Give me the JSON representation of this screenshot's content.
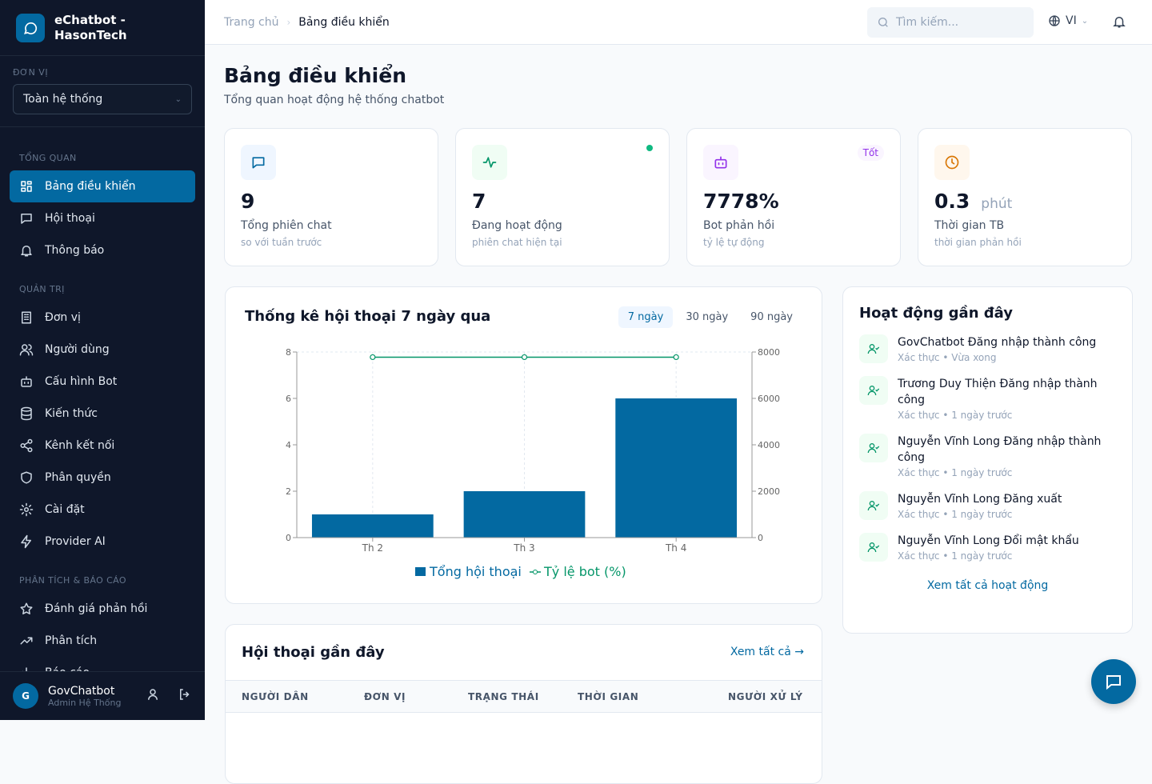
{
  "app": {
    "name_line1": "eChatbot -",
    "name_line2": "HasonTech"
  },
  "unit": {
    "label": "ĐƠN VỊ",
    "value": "Toàn hệ thống"
  },
  "sidebar": {
    "sections": [
      {
        "title": "TỔNG QUAN",
        "items": [
          {
            "label": "Bảng điều khiển",
            "icon": "dashboard-icon",
            "active": true
          },
          {
            "label": "Hội thoại",
            "icon": "chat-icon"
          },
          {
            "label": "Thông báo",
            "icon": "bell-icon"
          }
        ]
      },
      {
        "title": "QUẢN TRỊ",
        "items": [
          {
            "label": "Đơn vị",
            "icon": "building-icon"
          },
          {
            "label": "Người dùng",
            "icon": "users-icon"
          },
          {
            "label": "Cấu hình Bot",
            "icon": "bot-icon"
          },
          {
            "label": "Kiến thức",
            "icon": "database-icon"
          },
          {
            "label": "Kênh kết nối",
            "icon": "share-icon"
          },
          {
            "label": "Phân quyền",
            "icon": "shield-icon"
          },
          {
            "label": "Cài đặt",
            "icon": "gear-icon"
          },
          {
            "label": "Provider AI",
            "icon": "zap-icon"
          }
        ]
      },
      {
        "title": "PHÂN TÍCH & BÁO CÁO",
        "items": [
          {
            "label": "Đánh giá phản hồi",
            "icon": "star-icon"
          },
          {
            "label": "Phân tích",
            "icon": "trend-icon"
          },
          {
            "label": "Báo cáo",
            "icon": "bar-chart-icon"
          }
        ]
      }
    ]
  },
  "user": {
    "initial": "G",
    "name": "GovChatbot",
    "role": "Admin Hệ Thống"
  },
  "header": {
    "breadcrumb": [
      "Trang chủ",
      "Bảng điều khiển"
    ],
    "search_placeholder": "Tìm kiếm...",
    "lang": "VI"
  },
  "page": {
    "title": "Bảng điều khiển",
    "subtitle": "Tổng quan hoạt động hệ thống chatbot"
  },
  "stats": [
    {
      "value": "9",
      "label": "Tổng phiên chat",
      "hint": "so với tuần trước",
      "color": "#0369a1"
    },
    {
      "value": "7",
      "label": "Đang hoạt động",
      "hint": "phiên chat hiện tại",
      "color": "#059669"
    },
    {
      "value": "7778%",
      "label": "Bot phản hồi",
      "hint": "tỷ lệ tự động",
      "badge": "Tốt",
      "color": "#9333ea"
    },
    {
      "value": "0.3",
      "unit": "phút",
      "label": "Thời gian TB",
      "hint": "thời gian phản hồi",
      "color": "#d97706"
    }
  ],
  "chart": {
    "title": "Thống kê hội thoại 7 ngày qua",
    "ranges": [
      "7 ngày",
      "30 ngày",
      "90 ngày"
    ],
    "active_range": "7 ngày"
  },
  "chart_data": {
    "type": "bar",
    "categories": [
      "Th 2",
      "Th 3",
      "Th 4"
    ],
    "series": [
      {
        "name": "Tổng hội thoại",
        "type": "bar",
        "axis": "left",
        "values": [
          1,
          2,
          6
        ],
        "color": "#0369a1"
      },
      {
        "name": "Tỷ lệ bot (%)",
        "type": "line",
        "axis": "right",
        "values": [
          7778,
          7778,
          7778
        ],
        "color": "#059669"
      }
    ],
    "ylim": [
      0,
      8
    ],
    "yticks": [
      0,
      2,
      4,
      6,
      8
    ],
    "y2lim": [
      0,
      8000
    ],
    "y2ticks": [
      0,
      2000,
      4000,
      6000,
      8000
    ],
    "grid": true,
    "legend": "bottom"
  },
  "activity": {
    "title": "Hoạt động gần đây",
    "items": [
      {
        "text": "GovChatbot Đăng nhập thành công",
        "category": "Xác thực",
        "time": "Vừa xong"
      },
      {
        "text": "Trương Duy Thiện Đăng nhập thành công",
        "category": "Xác thực",
        "time": "1 ngày trước"
      },
      {
        "text": "Nguyễn Vĩnh Long Đăng nhập thành công",
        "category": "Xác thực",
        "time": "1 ngày trước"
      },
      {
        "text": "Nguyễn Vĩnh Long Đăng xuất",
        "category": "Xác thực",
        "time": "1 ngày trước"
      },
      {
        "text": "Nguyễn Vĩnh Long Đổi mật khẩu",
        "category": "Xác thực",
        "time": "1 ngày trước"
      }
    ],
    "view_all": "Xem tất cả hoạt động"
  },
  "conversations": {
    "title": "Hội thoại gần đây",
    "view_all": "Xem tất cả",
    "columns": [
      "NGƯỜI DÂN",
      "ĐƠN VỊ",
      "TRẠNG THÁI",
      "THỜI GIAN",
      "NGƯỜI XỬ LÝ"
    ]
  }
}
